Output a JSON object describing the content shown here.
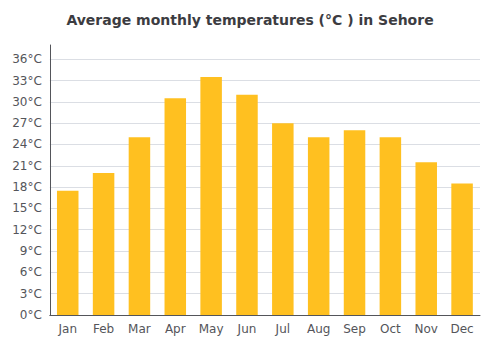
{
  "chart_data": {
    "type": "bar",
    "title": "Average monthly temperatures (°C ) in Sehore",
    "categories": [
      "Jan",
      "Feb",
      "Mar",
      "Apr",
      "May",
      "Jun",
      "Jul",
      "Aug",
      "Sep",
      "Oct",
      "Nov",
      "Dec"
    ],
    "values": [
      17.5,
      20.0,
      25.0,
      30.5,
      33.5,
      31.0,
      27.0,
      25.0,
      26.0,
      25.0,
      21.5,
      18.5
    ],
    "color": "#FFC020",
    "ylim": [
      0,
      38
    ],
    "yticks": [
      {
        "value": 0,
        "label": "0°C"
      },
      {
        "value": 3,
        "label": "3°C"
      },
      {
        "value": 6,
        "label": "6°C"
      },
      {
        "value": 9,
        "label": "9°C"
      },
      {
        "value": 12,
        "label": "12°C"
      },
      {
        "value": 15,
        "label": "15°C"
      },
      {
        "value": 18,
        "label": "18°C"
      },
      {
        "value": 21,
        "label": "21°C"
      },
      {
        "value": 24,
        "label": "24°C"
      },
      {
        "value": 27,
        "label": "27°C"
      },
      {
        "value": 30,
        "label": "30°C"
      },
      {
        "value": 33,
        "label": "33°C"
      },
      {
        "value": 36,
        "label": "36°C"
      }
    ],
    "grid": true
  }
}
